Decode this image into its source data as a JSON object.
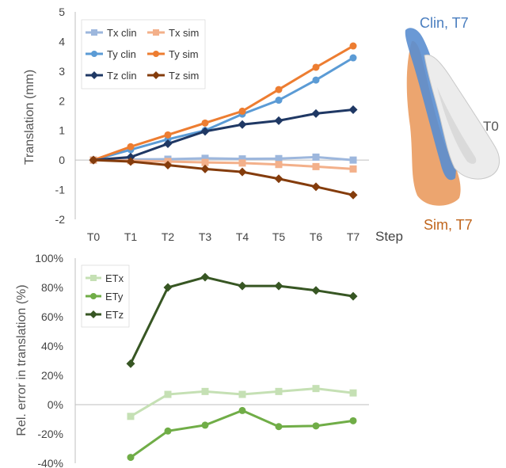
{
  "chart_data": [
    {
      "type": "line",
      "ylabel": "Translation (mm)",
      "xlabel": "Step",
      "categories": [
        "T0",
        "T1",
        "T2",
        "T3",
        "T4",
        "T5",
        "T6",
        "T7"
      ],
      "ylim": [
        -2,
        5
      ],
      "yticks": [
        -2,
        -1,
        0,
        1,
        2,
        3,
        4,
        5
      ],
      "grid": false,
      "legend": "top-left",
      "series": [
        {
          "name": "Tx clin",
          "color": "#9db7dd",
          "marker": "square",
          "values": [
            0,
            0.02,
            0.03,
            0.06,
            0.04,
            0.05,
            0.1,
            0.0
          ]
        },
        {
          "name": "Tx sim",
          "color": "#f3b08a",
          "marker": "square",
          "values": [
            0,
            -0.02,
            -0.05,
            -0.08,
            -0.1,
            -0.15,
            -0.22,
            -0.3
          ]
        },
        {
          "name": "Ty clin",
          "color": "#5b9bd5",
          "marker": "circle",
          "values": [
            0,
            0.35,
            0.7,
            1.0,
            1.55,
            2.02,
            2.7,
            3.45
          ]
        },
        {
          "name": "Ty sim",
          "color": "#ed7d31",
          "marker": "circle",
          "values": [
            0,
            0.45,
            0.85,
            1.25,
            1.65,
            2.38,
            3.13,
            3.85
          ]
        },
        {
          "name": "Tz clin",
          "color": "#1f3864",
          "marker": "diamond",
          "values": [
            0,
            0.1,
            0.55,
            0.97,
            1.2,
            1.33,
            1.57,
            1.7
          ]
        },
        {
          "name": "Tz sim",
          "color": "#843c0c",
          "marker": "diamond",
          "values": [
            0,
            -0.05,
            -0.17,
            -0.3,
            -0.4,
            -0.63,
            -0.9,
            -1.18
          ]
        }
      ]
    },
    {
      "type": "line",
      "ylabel": "Rel. error in translation (%)",
      "categories": [
        "T0",
        "T1",
        "T2",
        "T3",
        "T4",
        "T5",
        "T6",
        "T7"
      ],
      "ylim": [
        -40,
        100
      ],
      "yticks": [
        "-40%",
        "-20%",
        "0%",
        "20%",
        "40%",
        "60%",
        "80%",
        "100%"
      ],
      "grid": false,
      "legend": "top-left",
      "series": [
        {
          "name": "ETx",
          "color": "#c5e0b4",
          "marker": "square",
          "values": [
            null,
            -8,
            7,
            9,
            7,
            9,
            11,
            8
          ]
        },
        {
          "name": "ETy",
          "color": "#70ad47",
          "marker": "circle",
          "values": [
            null,
            -36,
            -18,
            -14,
            -4,
            -15,
            -14.5,
            -11
          ]
        },
        {
          "name": "ETz",
          "color": "#375623",
          "marker": "diamond",
          "values": [
            null,
            28,
            80,
            87,
            81,
            81,
            78,
            74
          ]
        }
      ]
    }
  ],
  "tooth": {
    "labels": {
      "clin": "Clin, T7",
      "t0": "T0",
      "sim": "Sim, T7"
    },
    "colors": {
      "clin": "#4a7ebf",
      "t0": "#555555",
      "sim": "#c0651c"
    }
  }
}
